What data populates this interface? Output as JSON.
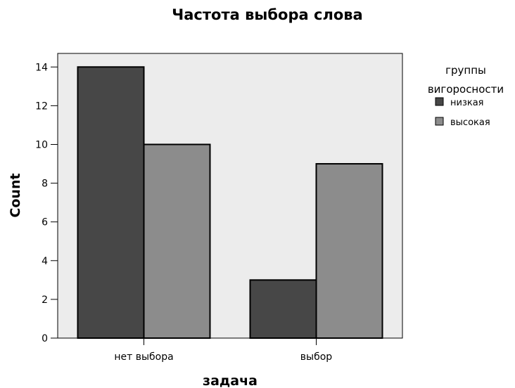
{
  "chart_data": {
    "type": "bar",
    "title": "Частота выбора слова",
    "xlabel": "задача",
    "ylabel": "Count",
    "categories": [
      "нет выбора",
      "выбор"
    ],
    "series": [
      {
        "name": "низкая",
        "values": [
          14,
          3
        ],
        "color": "#474747"
      },
      {
        "name": "высокая",
        "values": [
          10,
          9
        ],
        "color": "#8c8c8c"
      }
    ],
    "ylim": [
      0,
      14.7
    ],
    "yticks": [
      0,
      2,
      4,
      6,
      8,
      10,
      12,
      14
    ],
    "grid": false,
    "legend": {
      "title_lines": [
        "группы",
        "вигоросности"
      ],
      "position": "right"
    },
    "plot_background": "#ececec"
  }
}
